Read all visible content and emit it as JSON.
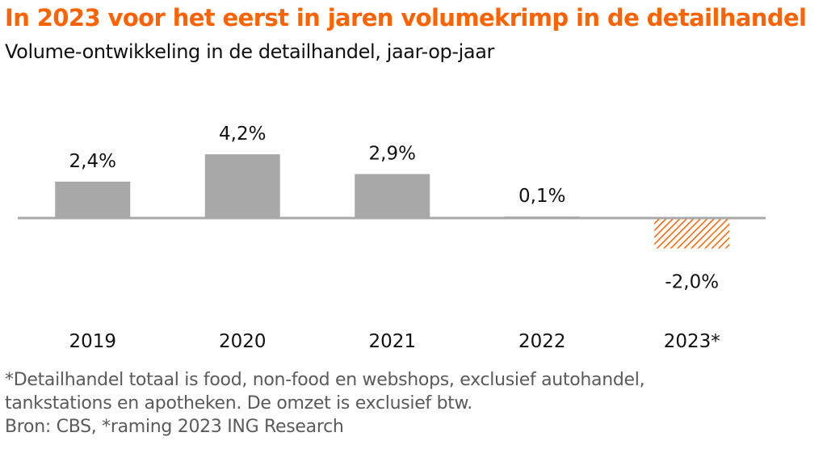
{
  "title": "In 2023 voor het eerst in jaren volumekrimp in de detailhandel",
  "subtitle": "Volume-ontwikkeling in de detailhandel, jaar-op-jaar",
  "colors": {
    "title": "#ff6200",
    "bar": "#a8a8a8",
    "forecast_bar": "#ff6200",
    "baseline": "#a8a8a8",
    "text": "#111111",
    "footnote": "#5a5a5a"
  },
  "chart_data": {
    "type": "bar",
    "categories": [
      "2019",
      "2020",
      "2021",
      "2022",
      "2023*"
    ],
    "values": [
      2.4,
      4.2,
      2.9,
      0.1,
      -2.0
    ],
    "value_labels": [
      "2,4%",
      "4,2%",
      "2,9%",
      "0,1%",
      "-2,0%"
    ],
    "forecast": [
      false,
      false,
      false,
      false,
      true
    ],
    "forecast_pattern": "diagonal-hatch",
    "title": "In 2023 voor het eerst in jaren volumekrimp in de detailhandel",
    "subtitle": "Volume-ontwikkeling in de detailhandel, jaar-op-jaar",
    "xlabel": "",
    "ylabel": "",
    "y_axis_visible": false,
    "grid": false
  },
  "footnotes": [
    "*Detailhandel totaal is food, non-food en webshops, exclusief autohandel,",
    "tankstations en apotheken. De omzet is exclusief btw.",
    "Bron: CBS, *raming 2023 ING Research"
  ]
}
